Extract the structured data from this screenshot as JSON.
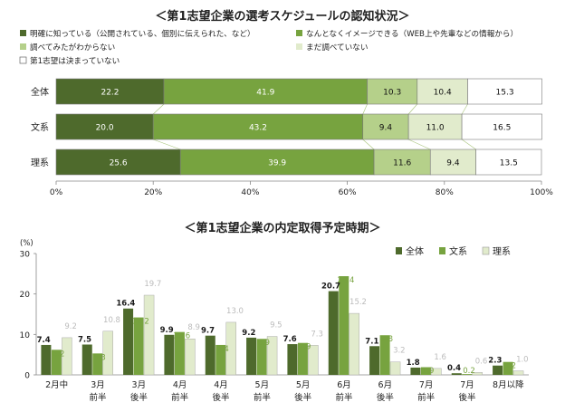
{
  "colors": {
    "dark": "#4e6a2c",
    "mid": "#77a33f",
    "light": "#b5d08a",
    "pale": "#e1ebcc",
    "white": "#ffffff",
    "border": "#7a7a7a",
    "connector": "#a8c47c"
  },
  "chart_data": [
    {
      "type": "bar",
      "orientation": "horizontal-stacked",
      "title": "＜第1志望企業の選考スケジュールの認知状況＞",
      "categories": [
        "全体",
        "文系",
        "理系"
      ],
      "series": [
        {
          "name": "明確に知っている（公開されている、個別に伝えられた、など）",
          "values": [
            22.2,
            20.0,
            25.6
          ]
        },
        {
          "name": "なんとなくイメージできる（WEB上や先輩などの情報から）",
          "values": [
            41.9,
            43.2,
            39.9
          ]
        },
        {
          "name": "調べてみたがわからない",
          "values": [
            10.3,
            9.4,
            11.6
          ]
        },
        {
          "name": "まだ調べていない",
          "values": [
            10.4,
            11.0,
            9.4
          ]
        },
        {
          "name": "第1志望は決まっていない",
          "values": [
            15.3,
            16.5,
            13.5
          ]
        }
      ],
      "value_labels": [
        [
          "22.2",
          "20.0",
          "25.6"
        ],
        [
          "41.9",
          "43.2",
          "39.9"
        ],
        [
          "10.3",
          "9.4",
          "11.6"
        ],
        [
          "10.4",
          "11.0",
          "9.4"
        ],
        [
          "15.3",
          "16.5",
          "13.5"
        ]
      ],
      "xticks": [
        "0%",
        "20%",
        "40%",
        "60%",
        "80%",
        "100%"
      ],
      "xlim": [
        0,
        100
      ],
      "legend_position": "top"
    },
    {
      "type": "bar",
      "orientation": "vertical-grouped",
      "title": "＜第1志望企業の内定取得予定時期＞",
      "ylabel": "(%)",
      "ylim": [
        0,
        30
      ],
      "yticks": [
        "0",
        "10",
        "20",
        "30"
      ],
      "categories": [
        "2月中",
        "3月\n前半",
        "3月\n後半",
        "4月\n前半",
        "4月\n後半",
        "5月\n前半",
        "5月\n後半",
        "6月\n前半",
        "6月\n後半",
        "7月\n前半",
        "7月\n後半",
        "8月以降"
      ],
      "series": [
        {
          "name": "全体",
          "values": [
            7.4,
            7.5,
            16.4,
            9.9,
            9.7,
            9.2,
            7.6,
            20.7,
            7.1,
            1.8,
            0.4,
            2.3
          ]
        },
        {
          "name": "文系",
          "values": [
            6.2,
            5.3,
            14.2,
            10.6,
            7.4,
            8.9,
            7.9,
            24.4,
            9.8,
            1.9,
            0.2,
            3.2
          ]
        },
        {
          "name": "理系",
          "values": [
            9.2,
            10.8,
            19.7,
            8.9,
            13.0,
            9.5,
            7.3,
            15.2,
            3.2,
            1.6,
            0.6,
            1.0
          ]
        }
      ],
      "value_labels": [
        [
          "7.4",
          "7.5",
          "16.4",
          "9.9",
          "9.7",
          "9.2",
          "7.6",
          "20.7",
          "7.1",
          "1.8",
          "0.4",
          "2.3"
        ],
        [
          "6.2",
          "5.3",
          "14.2",
          "10.6",
          "7.4",
          "8.9",
          "7.9",
          "24.4",
          "9.8",
          "1.9",
          "0.2",
          "3.2"
        ],
        [
          "9.2",
          "10.8",
          "19.7",
          "8.9",
          "13.0",
          "9.5",
          "7.3",
          "15.2",
          "3.2",
          "1.6",
          "0.6",
          "1.0"
        ]
      ],
      "legend_position": "top-right"
    }
  ]
}
